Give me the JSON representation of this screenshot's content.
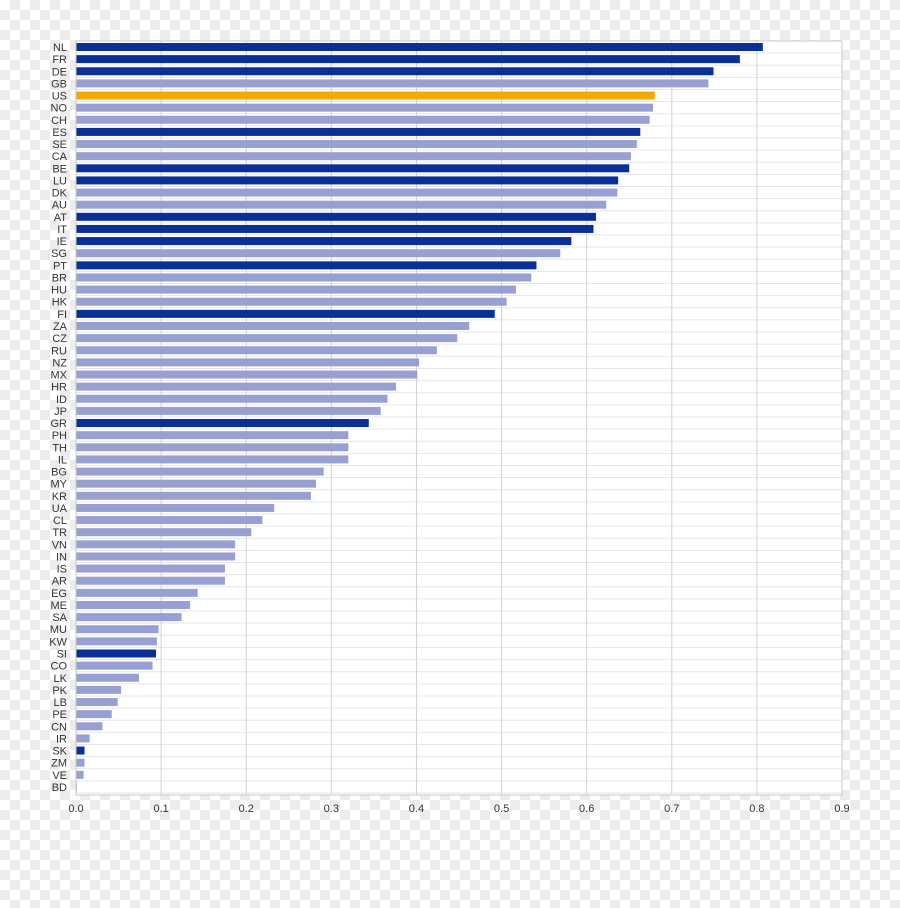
{
  "chart_data": {
    "type": "bar",
    "orientation": "horizontal",
    "title": "",
    "xlabel": "",
    "ylabel": "",
    "xlim": [
      0,
      0.9
    ],
    "x_ticks": [
      "0.0",
      "0.1",
      "0.2",
      "0.3",
      "0.4",
      "0.5",
      "0.6",
      "0.7",
      "0.8",
      "0.9"
    ],
    "grid": true,
    "legend": "none",
    "colors": {
      "highlight_dark": "#0a2f96",
      "other_light": "#98a0d2",
      "focus": "#f5a800"
    },
    "categories": [
      "NL",
      "FR",
      "DE",
      "GB",
      "US",
      "NO",
      "CH",
      "ES",
      "SE",
      "CA",
      "BE",
      "LU",
      "DK",
      "AU",
      "AT",
      "IT",
      "IE",
      "SG",
      "PT",
      "BR",
      "HU",
      "HK",
      "FI",
      "ZA",
      "CZ",
      "RU",
      "NZ",
      "MX",
      "HR",
      "ID",
      "JP",
      "GR",
      "PH",
      "TH",
      "IL",
      "BG",
      "MY",
      "KR",
      "UA",
      "CL",
      "TR",
      "VN",
      "IN",
      "IS",
      "AR",
      "EG",
      "ME",
      "SA",
      "MU",
      "KW",
      "SI",
      "CO",
      "LK",
      "PK",
      "LB",
      "PE",
      "CN",
      "IR",
      "SK",
      "ZM",
      "VE",
      "BD"
    ],
    "values": [
      0.807,
      0.78,
      0.749,
      0.743,
      0.68,
      0.678,
      0.674,
      0.663,
      0.659,
      0.652,
      0.65,
      0.637,
      0.636,
      0.623,
      0.611,
      0.608,
      0.582,
      0.569,
      0.541,
      0.535,
      0.517,
      0.506,
      0.492,
      0.462,
      0.448,
      0.424,
      0.403,
      0.401,
      0.376,
      0.366,
      0.358,
      0.344,
      0.32,
      0.32,
      0.32,
      0.291,
      0.282,
      0.276,
      0.233,
      0.219,
      0.206,
      0.187,
      0.187,
      0.175,
      0.175,
      0.143,
      0.134,
      0.124,
      0.097,
      0.095,
      0.094,
      0.09,
      0.074,
      0.053,
      0.049,
      0.042,
      0.031,
      0.016,
      0.01,
      0.01,
      0.009,
      0.001
    ],
    "bar_colors": [
      "dark",
      "dark",
      "dark",
      "light",
      "focus",
      "light",
      "light",
      "dark",
      "light",
      "light",
      "dark",
      "dark",
      "light",
      "light",
      "dark",
      "dark",
      "dark",
      "light",
      "dark",
      "light",
      "light",
      "light",
      "dark",
      "light",
      "light",
      "light",
      "light",
      "light",
      "light",
      "light",
      "light",
      "dark",
      "light",
      "light",
      "light",
      "light",
      "light",
      "light",
      "light",
      "light",
      "light",
      "light",
      "light",
      "light",
      "light",
      "light",
      "light",
      "light",
      "light",
      "light",
      "dark",
      "light",
      "light",
      "light",
      "light",
      "light",
      "light",
      "light",
      "dark",
      "light",
      "light",
      "light"
    ]
  }
}
